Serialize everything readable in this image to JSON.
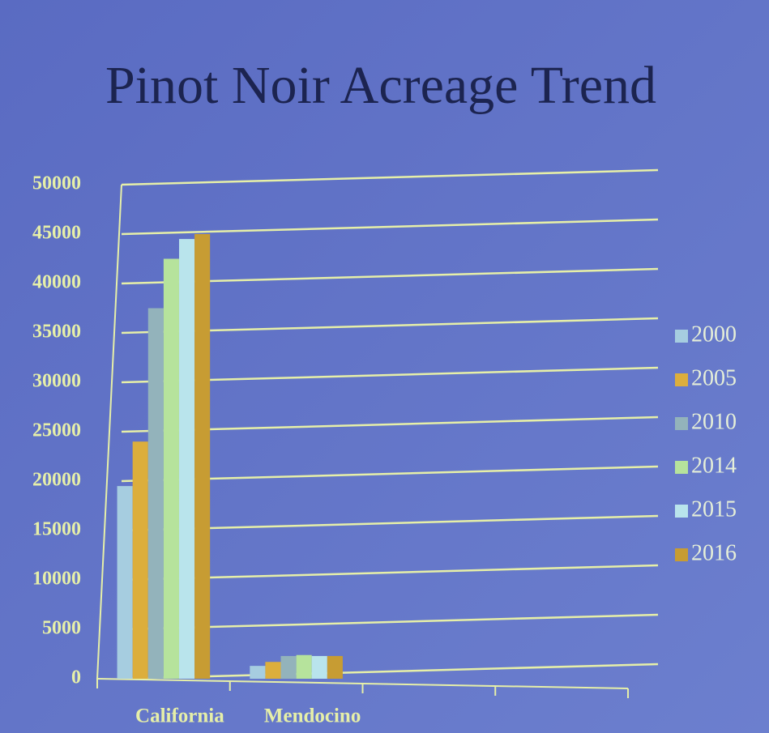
{
  "chart_data": {
    "type": "bar",
    "title": "Pinot Noir Acreage Trend",
    "categories": [
      "California",
      "Mendocino",
      null,
      null
    ],
    "series": [
      {
        "name": "2000",
        "color": "#a6cde0",
        "values": [
          19500,
          1300,
          null,
          null
        ]
      },
      {
        "name": "2005",
        "color": "#dcae3c",
        "values": [
          24000,
          1700,
          null,
          null
        ]
      },
      {
        "name": "2010",
        "color": "#93b3bb",
        "values": [
          37500,
          2300,
          null,
          null
        ]
      },
      {
        "name": "2014",
        "color": "#b6e39c",
        "values": [
          42500,
          2400,
          null,
          null
        ]
      },
      {
        "name": "2015",
        "color": "#b9e4ec",
        "values": [
          44500,
          2300,
          null,
          null
        ]
      },
      {
        "name": "2016",
        "color": "#c79c33",
        "values": [
          45000,
          2300,
          null,
          null
        ]
      }
    ],
    "ylim": [
      0,
      50000
    ],
    "yticks": [
      0,
      5000,
      10000,
      15000,
      20000,
      25000,
      30000,
      35000,
      40000,
      45000,
      50000
    ],
    "grid": true,
    "legend": "right"
  }
}
